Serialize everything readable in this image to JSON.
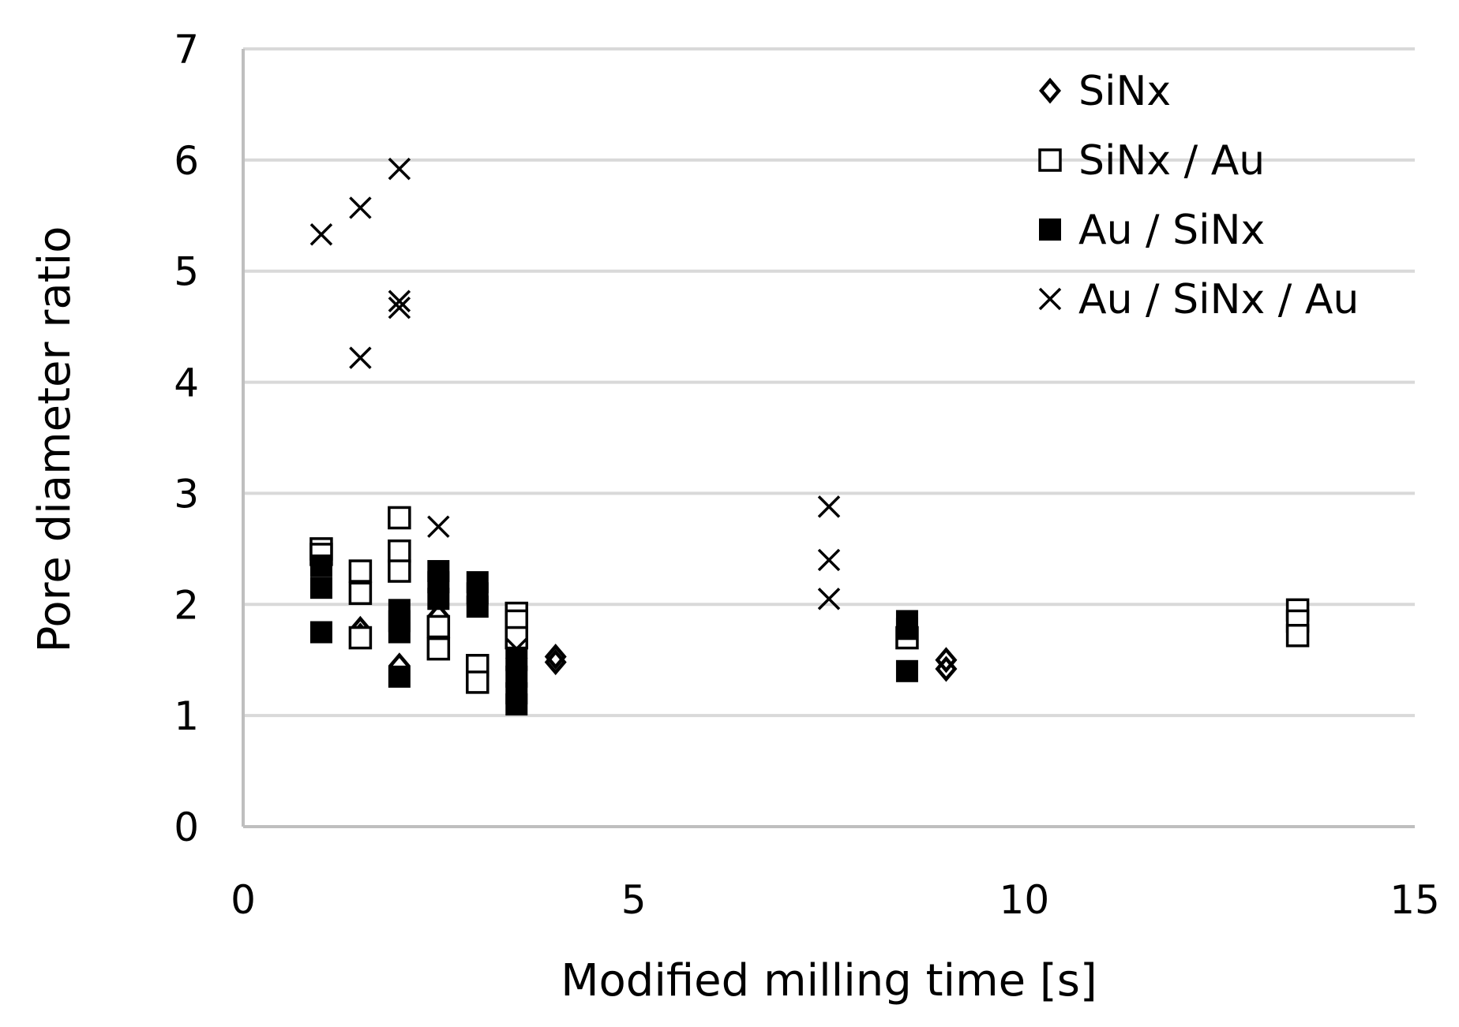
{
  "chart_data": {
    "type": "scatter",
    "title": "",
    "xlabel": "Modified milling time [s]",
    "ylabel": "Pore diameter ratio",
    "xlim": [
      0,
      15
    ],
    "ylim": [
      0,
      7
    ],
    "xticks": [
      0,
      5,
      10,
      15
    ],
    "yticks": [
      0,
      1,
      2,
      3,
      4,
      5,
      6,
      7
    ],
    "x_tick_labels": [
      "0",
      "5",
      "10",
      "15"
    ],
    "y_tick_labels": [
      "0",
      "1",
      "2",
      "3",
      "4",
      "5",
      "6",
      "7"
    ],
    "grid": "horizontal",
    "legend_position": "top-right",
    "series": [
      {
        "name": "SiNx",
        "marker": "diamond-open",
        "points": [
          [
            1.5,
            1.72
          ],
          [
            1.5,
            1.78
          ],
          [
            2.0,
            1.45
          ],
          [
            2.5,
            1.7
          ],
          [
            2.5,
            1.9
          ],
          [
            3.5,
            1.65
          ],
          [
            3.5,
            1.68
          ],
          [
            4.0,
            1.48
          ],
          [
            4.0,
            1.53
          ],
          [
            9.0,
            1.42
          ],
          [
            9.0,
            1.5
          ]
        ]
      },
      {
        "name": "SiNx / Au",
        "marker": "square-open",
        "points": [
          [
            1.0,
            2.5
          ],
          [
            1.0,
            2.45
          ],
          [
            1.5,
            2.3
          ],
          [
            1.5,
            2.1
          ],
          [
            1.5,
            1.7
          ],
          [
            2.0,
            2.78
          ],
          [
            2.0,
            2.48
          ],
          [
            2.0,
            2.3
          ],
          [
            2.5,
            1.8
          ],
          [
            2.5,
            1.6
          ],
          [
            3.0,
            1.45
          ],
          [
            3.0,
            1.3
          ],
          [
            3.5,
            1.92
          ],
          [
            3.5,
            1.85
          ],
          [
            3.5,
            1.7
          ],
          [
            8.5,
            1.7
          ],
          [
            13.5,
            1.95
          ],
          [
            13.5,
            1.85
          ],
          [
            13.5,
            1.72
          ]
        ]
      },
      {
        "name": "Au / SiNx",
        "marker": "square-filled",
        "points": [
          [
            1.0,
            2.35
          ],
          [
            1.0,
            2.15
          ],
          [
            1.0,
            1.75
          ],
          [
            2.0,
            1.95
          ],
          [
            2.0,
            1.85
          ],
          [
            2.0,
            1.75
          ],
          [
            2.0,
            1.35
          ],
          [
            2.5,
            2.3
          ],
          [
            2.5,
            2.2
          ],
          [
            2.5,
            2.05
          ],
          [
            3.0,
            2.2
          ],
          [
            3.0,
            2.1
          ],
          [
            3.0,
            1.98
          ],
          [
            3.5,
            1.5
          ],
          [
            3.5,
            1.35
          ],
          [
            3.5,
            1.2
          ],
          [
            3.5,
            1.1
          ],
          [
            8.5,
            1.85
          ],
          [
            8.5,
            1.78
          ],
          [
            8.5,
            1.4
          ]
        ]
      },
      {
        "name": "Au / SiNx / Au",
        "marker": "cross",
        "points": [
          [
            1.0,
            5.33
          ],
          [
            1.5,
            5.57
          ],
          [
            1.5,
            4.22
          ],
          [
            2.0,
            5.92
          ],
          [
            2.0,
            4.73
          ],
          [
            2.0,
            4.67
          ],
          [
            2.5,
            2.7
          ],
          [
            3.5,
            1.6
          ],
          [
            7.5,
            2.88
          ],
          [
            7.5,
            2.4
          ],
          [
            7.5,
            2.05
          ]
        ]
      }
    ]
  },
  "colors": {
    "marker": "#000000",
    "grid": "#d9d9d9",
    "axis": "#bfbfbf",
    "background": "#ffffff"
  }
}
